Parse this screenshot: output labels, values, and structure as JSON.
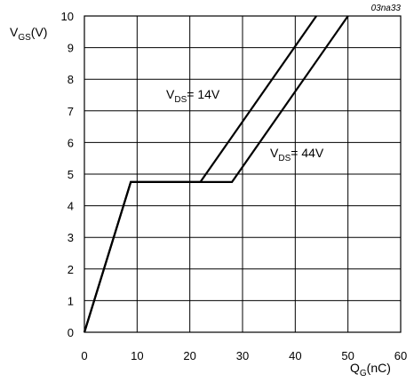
{
  "chart_data": {
    "type": "line",
    "code": "03na33",
    "ylabel": {
      "main": "V",
      "sub": "GS",
      "unit": "(V)"
    },
    "xlabel": {
      "main": "Q",
      "sub": "G",
      "unit": "(nC)"
    },
    "xlim": [
      0,
      60
    ],
    "ylim": [
      0,
      10
    ],
    "xticks": [
      0,
      10,
      20,
      30,
      40,
      50,
      60
    ],
    "yticks": [
      0,
      1,
      2,
      3,
      4,
      5,
      6,
      7,
      8,
      9,
      10
    ],
    "grid": true,
    "series": [
      {
        "label": {
          "main": "V",
          "sub": "DS",
          "value": "= 14V"
        },
        "points": [
          [
            0,
            0
          ],
          [
            8.8,
            4.75
          ],
          [
            22,
            4.75
          ],
          [
            44,
            10
          ]
        ]
      },
      {
        "label": {
          "main": "V",
          "sub": "DS",
          "value": "= 44V"
        },
        "points": [
          [
            0,
            0
          ],
          [
            8.8,
            4.75
          ],
          [
            28,
            4.75
          ],
          [
            50,
            10
          ]
        ]
      }
    ]
  }
}
